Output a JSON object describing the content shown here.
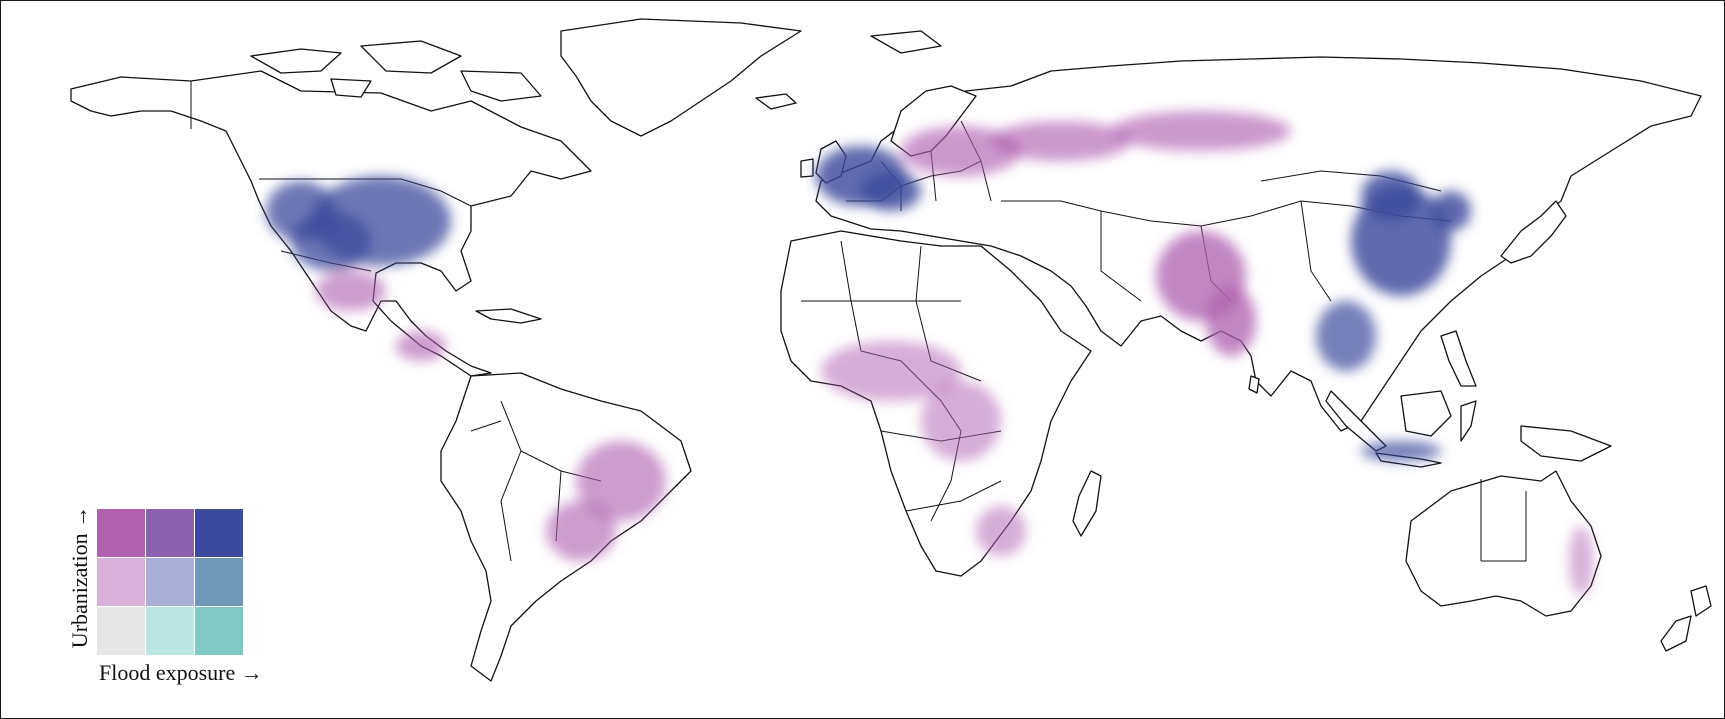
{
  "legend": {
    "y_label": "Urbanization →",
    "x_label": "Flood exposure →",
    "rows": [
      [
        "#b062b0",
        "#8a62b0",
        "#3d4a9c"
      ],
      [
        "#d9b0da",
        "#a9aed6",
        "#6e97b8"
      ],
      [
        "#e6e6e6",
        "#b9e6e2",
        "#80c8c4"
      ]
    ]
  },
  "colors": {
    "coastline": "#111111",
    "ocean": "#ffffff",
    "high_urban_low_flood": "#b062b0",
    "high_urban_high_flood": "#3d4a9c",
    "low_urban_high_flood": "#80c8c4"
  },
  "hotspots": [
    {
      "region": "Eastern United States",
      "intensity": 0.8,
      "class": "high_urban_high_flood"
    },
    {
      "region": "Western Europe",
      "intensity": 0.95,
      "class": "high_urban_high_flood"
    },
    {
      "region": "Eastern Europe / Russia",
      "intensity": 0.6,
      "class": "high_urban_low_flood"
    },
    {
      "region": "South Asia",
      "intensity": 0.85,
      "class": "high_urban_low_flood"
    },
    {
      "region": "East China",
      "intensity": 0.95,
      "class": "high_urban_high_flood"
    },
    {
      "region": "Southeast Asia",
      "intensity": 0.7,
      "class": "high_urban_high_flood"
    },
    {
      "region": "Mexico / Central America",
      "intensity": 0.55,
      "class": "high_urban_low_flood"
    },
    {
      "region": "Brazil",
      "intensity": 0.55,
      "class": "high_urban_low_flood"
    },
    {
      "region": "Sub-Saharan Africa",
      "intensity": 0.35,
      "class": "high_urban_low_flood"
    },
    {
      "region": "Australia east coast",
      "intensity": 0.3,
      "class": "high_urban_low_flood"
    }
  ]
}
